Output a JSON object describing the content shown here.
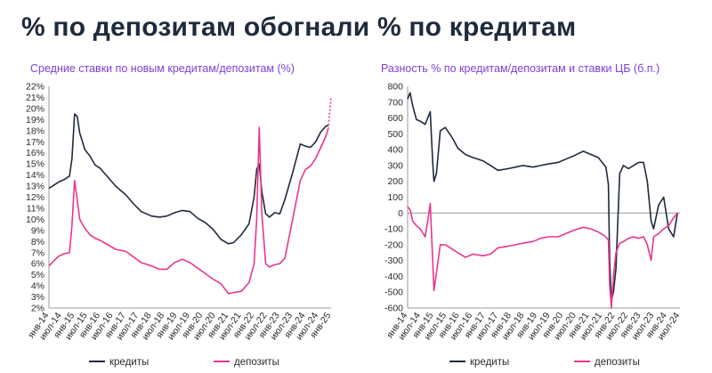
{
  "page": {
    "title": "% по депозитам обогнали % по кредитам"
  },
  "colors": {
    "credits": "#1f2a3d",
    "deposits": "#e8368f",
    "title_accent": "#7c3fd9"
  },
  "chart_data": [
    {
      "type": "line",
      "title": "Средние ставки по новым кредитам/депозитам (%)",
      "ylim": [
        2,
        22
      ],
      "ytick_labels": [
        "2%",
        "3%",
        "4%",
        "5%",
        "6%",
        "7%",
        "8%",
        "9%",
        "10%",
        "11%",
        "12%",
        "13%",
        "14%",
        "15%",
        "16%",
        "17%",
        "18%",
        "19%",
        "20%",
        "21%",
        "22%"
      ],
      "x_labels": [
        "янв-14",
        "июл-14",
        "янв-15",
        "июл-15",
        "янв-16",
        "июл-16",
        "янв-17",
        "июл-17",
        "янв-18",
        "июл-18",
        "янв-19",
        "июл-19",
        "янв-20",
        "июл-20",
        "янв-21",
        "июл-21",
        "янв-22",
        "июл-22",
        "янв-23",
        "июл-23",
        "янв-24",
        "июл-24",
        "янв-25"
      ],
      "x_range": [
        2014.0,
        2025.0
      ],
      "series": [
        {
          "name": "кредиты",
          "x": [
            2014.0,
            2014.2,
            2014.4,
            2014.6,
            2014.8,
            2014.9,
            2015.0,
            2015.1,
            2015.2,
            2015.4,
            2015.6,
            2015.8,
            2016.0,
            2016.3,
            2016.6,
            2017.0,
            2017.3,
            2017.6,
            2018.0,
            2018.3,
            2018.6,
            2018.9,
            2019.2,
            2019.5,
            2019.8,
            2020.1,
            2020.4,
            2020.7,
            2021.0,
            2021.2,
            2021.5,
            2021.8,
            2022.0,
            2022.1,
            2022.2,
            2022.3,
            2022.45,
            2022.6,
            2022.8,
            2023.0,
            2023.2,
            2023.5,
            2023.8,
            2024.0,
            2024.2,
            2024.4,
            2024.6,
            2024.8,
            2024.9
          ],
          "values": [
            12.8,
            13.1,
            13.4,
            13.6,
            13.9,
            15.5,
            19.5,
            19.3,
            17.8,
            16.3,
            15.7,
            14.9,
            14.6,
            13.8,
            13.0,
            12.2,
            11.4,
            10.7,
            10.3,
            10.2,
            10.3,
            10.6,
            10.8,
            10.7,
            10.1,
            9.7,
            9.1,
            8.2,
            7.8,
            7.9,
            8.6,
            9.6,
            12.0,
            14.5,
            15.0,
            12.5,
            10.5,
            10.2,
            10.6,
            10.5,
            11.8,
            14.2,
            16.8,
            16.6,
            16.5,
            17.0,
            17.9,
            18.4,
            18.5
          ]
        },
        {
          "name": "депозиты",
          "x": [
            2014.0,
            2014.2,
            2014.4,
            2014.6,
            2014.8,
            2014.9,
            2015.0,
            2015.1,
            2015.2,
            2015.4,
            2015.6,
            2015.8,
            2016.0,
            2016.3,
            2016.6,
            2017.0,
            2017.3,
            2017.6,
            2018.0,
            2018.3,
            2018.6,
            2018.9,
            2019.2,
            2019.5,
            2019.8,
            2020.1,
            2020.4,
            2020.7,
            2021.0,
            2021.2,
            2021.5,
            2021.8,
            2022.0,
            2022.1,
            2022.2,
            2022.3,
            2022.45,
            2022.6,
            2022.8,
            2023.0,
            2023.2,
            2023.5,
            2023.8,
            2024.0,
            2024.2,
            2024.4,
            2024.6,
            2024.8,
            2024.9
          ],
          "values": [
            5.8,
            6.3,
            6.7,
            6.9,
            7.0,
            9.5,
            13.5,
            11.8,
            10.0,
            9.2,
            8.6,
            8.3,
            8.1,
            7.7,
            7.3,
            7.1,
            6.6,
            6.1,
            5.8,
            5.5,
            5.5,
            6.1,
            6.4,
            6.1,
            5.6,
            5.1,
            4.6,
            4.2,
            3.3,
            3.4,
            3.5,
            4.3,
            6.0,
            10.0,
            18.3,
            10.5,
            6.0,
            5.7,
            5.9,
            6.0,
            6.5,
            10.0,
            13.5,
            14.5,
            14.8,
            15.5,
            16.5,
            17.5,
            18.3
          ]
        }
      ],
      "forecast": {
        "x": [
          2024.9,
          2025.0
        ],
        "values": [
          18.5,
          21.0
        ]
      }
    },
    {
      "type": "line",
      "title": "Разность % по кредитам/депозитам и ставки ЦБ (б.п.)",
      "ylim": [
        -600,
        800
      ],
      "ytick_labels": [
        "-600",
        "-500",
        "-400",
        "-300",
        "-200",
        "-100",
        "0",
        "100",
        "200",
        "300",
        "400",
        "500",
        "600",
        "700",
        "800"
      ],
      "x_labels": [
        "янв-14",
        "июл-14",
        "янв-15",
        "июл-15",
        "янв-16",
        "июл-16",
        "янв-17",
        "июл-17",
        "янв-18",
        "июл-18",
        "янв-19",
        "июл-19",
        "янв-20",
        "июл-20",
        "янв-21",
        "июл-21",
        "янв-22",
        "июл-22",
        "янв-23",
        "июл-23",
        "янв-24",
        "июл-24"
      ],
      "x_range": [
        2014.0,
        2024.85
      ],
      "series": [
        {
          "name": "кредиты",
          "x": [
            2014.0,
            2014.1,
            2014.2,
            2014.35,
            2014.5,
            2014.7,
            2014.8,
            2014.9,
            2015.0,
            2015.05,
            2015.15,
            2015.3,
            2015.5,
            2015.8,
            2016.0,
            2016.3,
            2016.6,
            2017.0,
            2017.3,
            2017.6,
            2018.0,
            2018.3,
            2018.6,
            2019.0,
            2019.3,
            2019.6,
            2020.0,
            2020.3,
            2020.6,
            2021.0,
            2021.3,
            2021.6,
            2021.9,
            2022.0,
            2022.05,
            2022.12,
            2022.2,
            2022.3,
            2022.45,
            2022.6,
            2022.8,
            2023.0,
            2023.2,
            2023.4,
            2023.55,
            2023.7,
            2023.8,
            2024.0,
            2024.2,
            2024.4,
            2024.6,
            2024.75
          ],
          "values": [
            720,
            760,
            680,
            590,
            580,
            560,
            600,
            640,
            320,
            200,
            250,
            520,
            540,
            470,
            410,
            370,
            350,
            330,
            300,
            270,
            280,
            290,
            300,
            290,
            300,
            310,
            320,
            340,
            360,
            390,
            370,
            350,
            290,
            180,
            -300,
            -550,
            -500,
            -350,
            250,
            300,
            280,
            300,
            320,
            320,
            200,
            -50,
            -100,
            50,
            100,
            -100,
            -150,
            0
          ]
        },
        {
          "name": "депозиты",
          "x": [
            2014.0,
            2014.1,
            2014.2,
            2014.35,
            2014.5,
            2014.7,
            2014.8,
            2014.9,
            2015.0,
            2015.05,
            2015.15,
            2015.3,
            2015.5,
            2015.8,
            2016.0,
            2016.3,
            2016.6,
            2017.0,
            2017.3,
            2017.6,
            2018.0,
            2018.3,
            2018.6,
            2019.0,
            2019.3,
            2019.6,
            2020.0,
            2020.3,
            2020.6,
            2021.0,
            2021.3,
            2021.6,
            2021.9,
            2022.0,
            2022.05,
            2022.12,
            2022.2,
            2022.3,
            2022.45,
            2022.6,
            2022.8,
            2023.0,
            2023.2,
            2023.4,
            2023.55,
            2023.7,
            2023.8,
            2024.0,
            2024.2,
            2024.4,
            2024.6,
            2024.75
          ],
          "values": [
            40,
            20,
            -50,
            -80,
            -100,
            -150,
            -50,
            60,
            -300,
            -490,
            -380,
            -200,
            -200,
            -230,
            -250,
            -280,
            -260,
            -270,
            -260,
            -220,
            -210,
            -200,
            -190,
            -180,
            -160,
            -150,
            -150,
            -130,
            -110,
            -90,
            -100,
            -120,
            -150,
            -170,
            -450,
            -600,
            -400,
            -250,
            -190,
            -180,
            -160,
            -150,
            -160,
            -150,
            -200,
            -300,
            -150,
            -130,
            -100,
            -80,
            -30,
            0
          ]
        }
      ]
    }
  ],
  "legends": [
    {
      "credits_label": "кредиты",
      "deposits_label": "депозиты"
    },
    {
      "credits_label": "кредиты",
      "deposits_label": "депозиты"
    }
  ]
}
